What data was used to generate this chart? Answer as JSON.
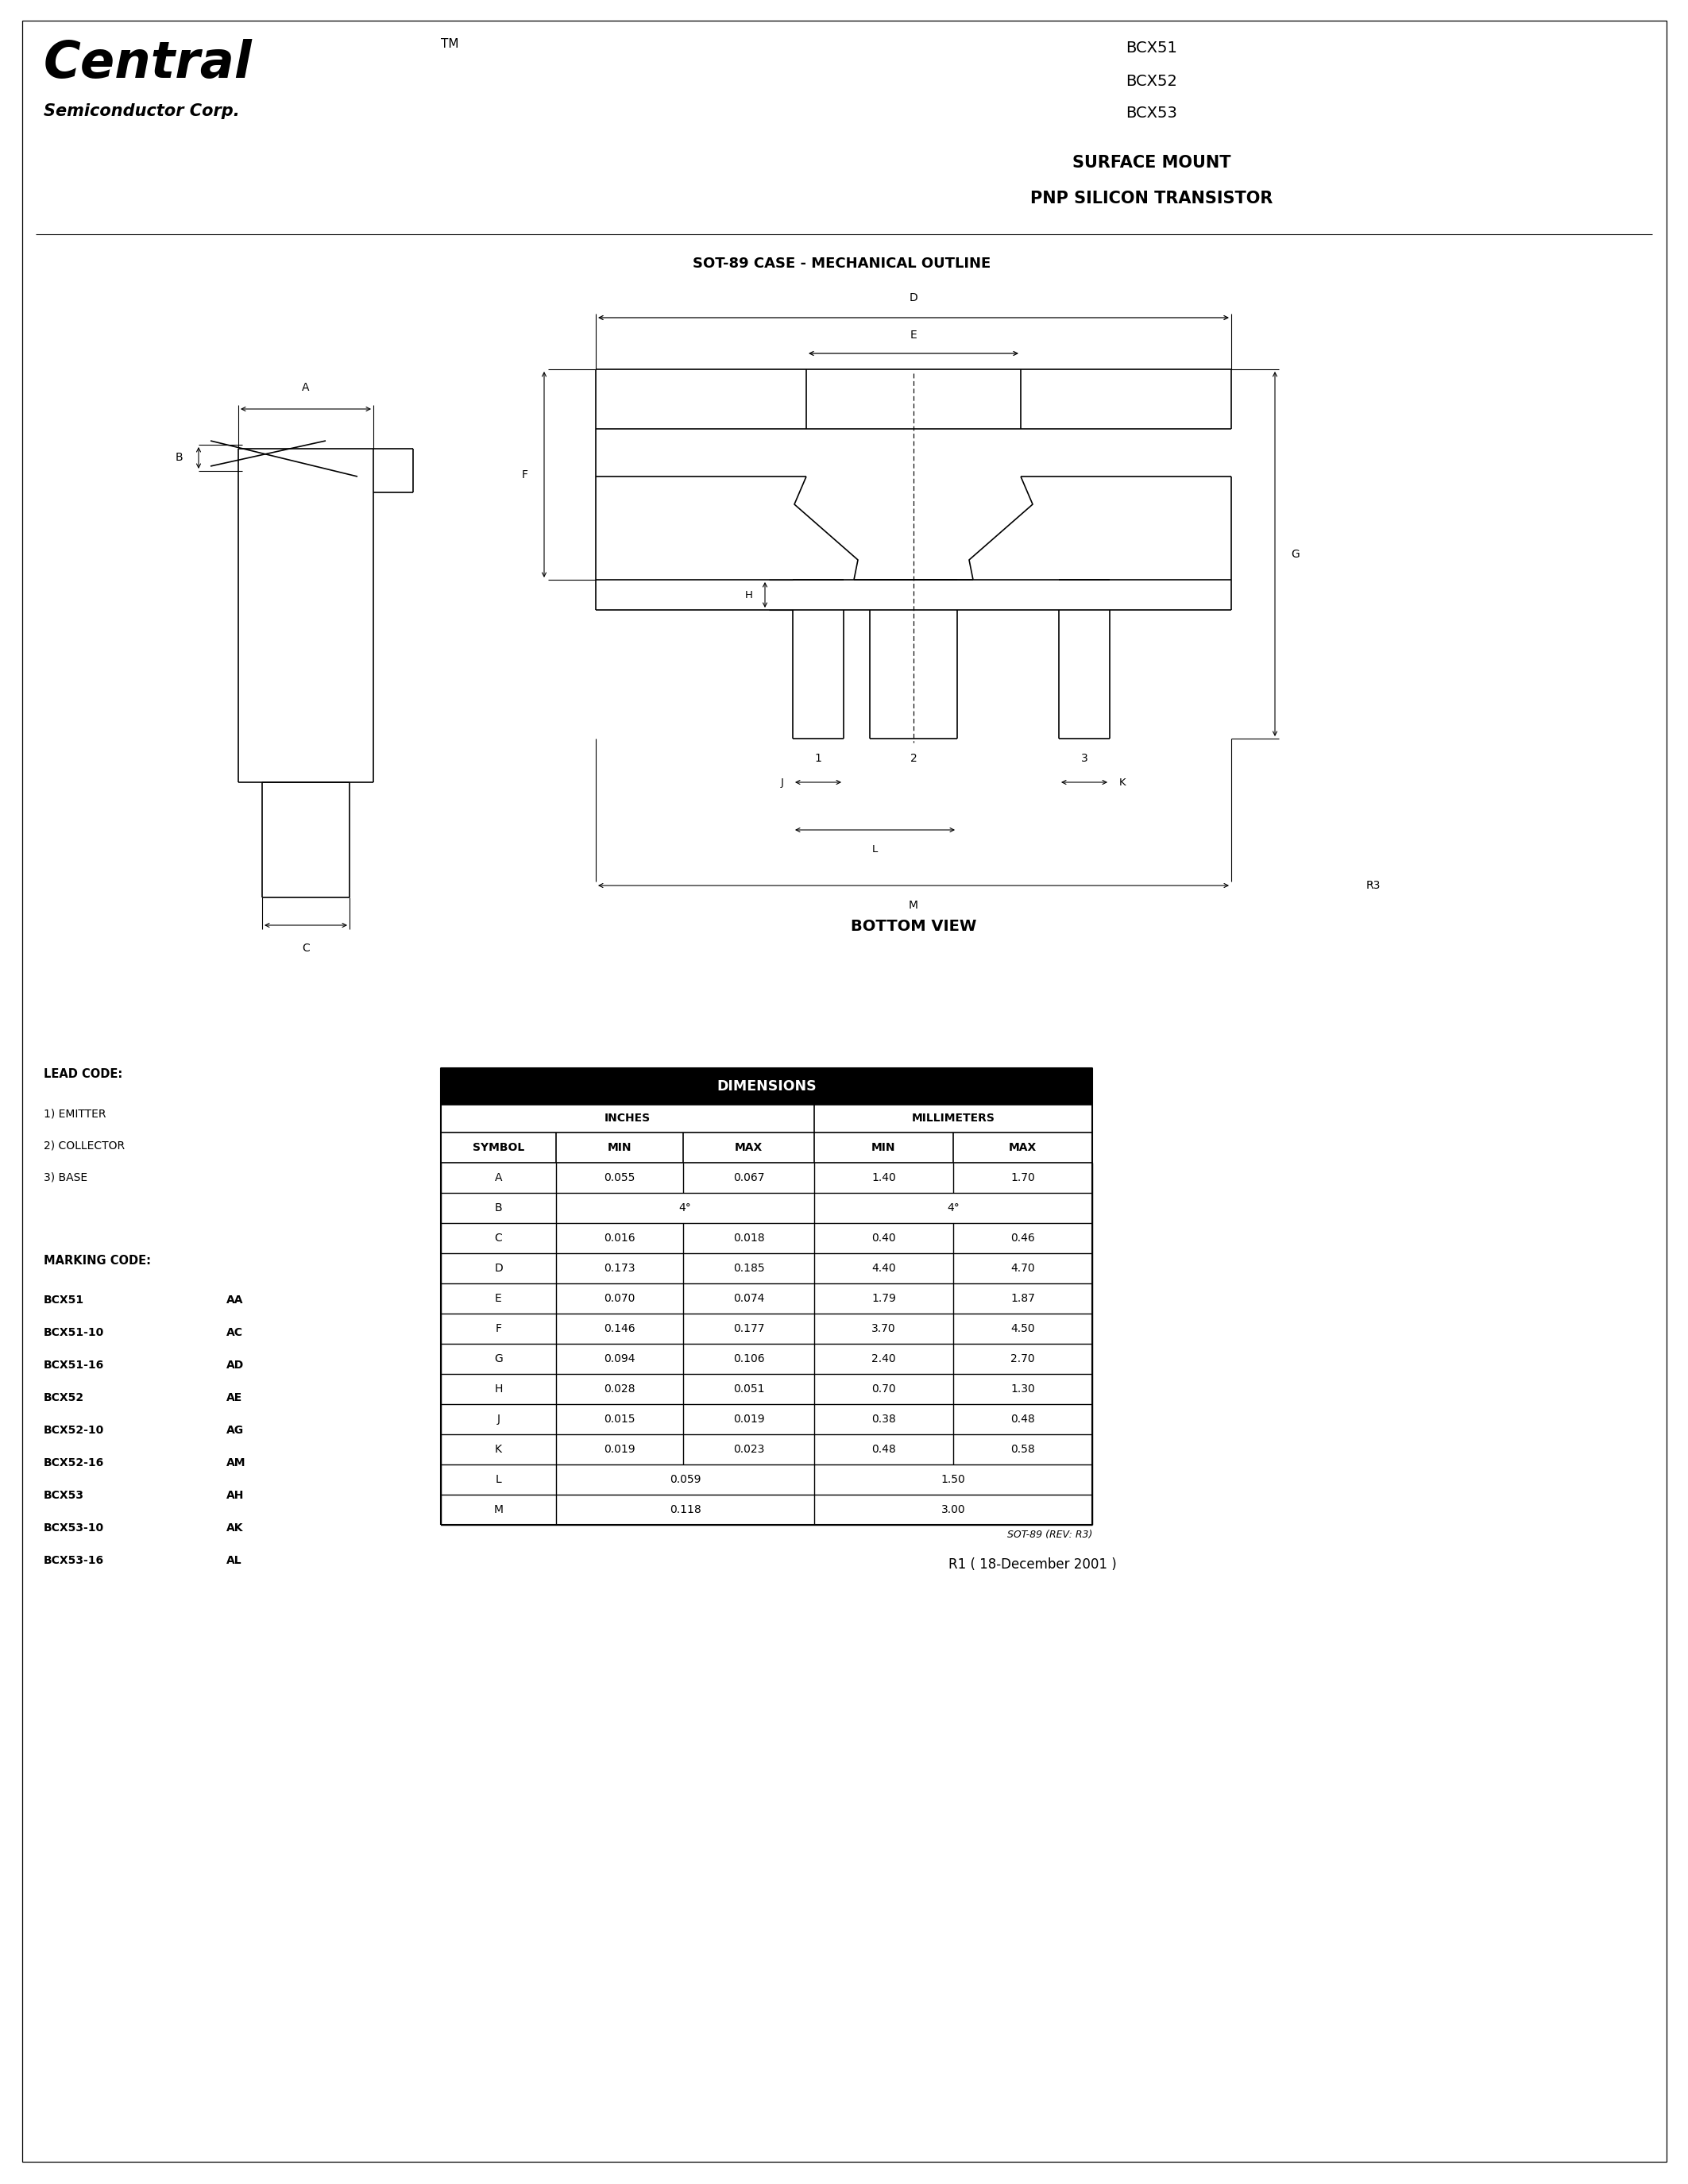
{
  "bg_color": "#ffffff",
  "company_name": "Central",
  "company_tm": "TM",
  "company_sub": "Semiconductor Corp.",
  "part_numbers": [
    "BCX51",
    "BCX52",
    "BCX53"
  ],
  "subtitle_line1": "SURFACE MOUNT",
  "subtitle_line2": "PNP SILICON TRANSISTOR",
  "diagram_title": "SOT-89 CASE - MECHANICAL OUTLINE",
  "bottom_view_label": "BOTTOM VIEW",
  "lead_code_title": "LEAD CODE:",
  "lead_code_items": [
    "1) EMITTER",
    "2) COLLECTOR",
    "3) BASE"
  ],
  "marking_code_title": "MARKING CODE:",
  "marking_codes": [
    [
      "BCX51",
      "AA"
    ],
    [
      "BCX51-10",
      "AC"
    ],
    [
      "BCX51-16",
      "AD"
    ],
    [
      "BCX52",
      "AE"
    ],
    [
      "BCX52-10",
      "AG"
    ],
    [
      "BCX52-16",
      "AM"
    ],
    [
      "BCX53",
      "AH"
    ],
    [
      "BCX53-10",
      "AK"
    ],
    [
      "BCX53-16",
      "AL"
    ]
  ],
  "table_header": "DIMENSIONS",
  "table_sub_headers": [
    "INCHES",
    "MILLIMETERS"
  ],
  "table_col_headers": [
    "SYMBOL",
    "MIN",
    "MAX",
    "MIN",
    "MAX"
  ],
  "table_rows": [
    [
      "A",
      "0.055",
      "0.067",
      "1.40",
      "1.70"
    ],
    [
      "B",
      "4°",
      "",
      "4°",
      ""
    ],
    [
      "C",
      "0.016",
      "0.018",
      "0.40",
      "0.46"
    ],
    [
      "D",
      "0.173",
      "0.185",
      "4.40",
      "4.70"
    ],
    [
      "E",
      "0.070",
      "0.074",
      "1.79",
      "1.87"
    ],
    [
      "F",
      "0.146",
      "0.177",
      "3.70",
      "4.50"
    ],
    [
      "G",
      "0.094",
      "0.106",
      "2.40",
      "2.70"
    ],
    [
      "H",
      "0.028",
      "0.051",
      "0.70",
      "1.30"
    ],
    [
      "J",
      "0.015",
      "0.019",
      "0.38",
      "0.48"
    ],
    [
      "K",
      "0.019",
      "0.023",
      "0.48",
      "0.58"
    ],
    [
      "L",
      "0.059",
      "",
      "1.50",
      ""
    ],
    [
      "M",
      "0.118",
      "",
      "3.00",
      ""
    ]
  ],
  "table_footer": "SOT-89 (REV: R3)",
  "revision": "R1 ( 18-December 2001 )"
}
